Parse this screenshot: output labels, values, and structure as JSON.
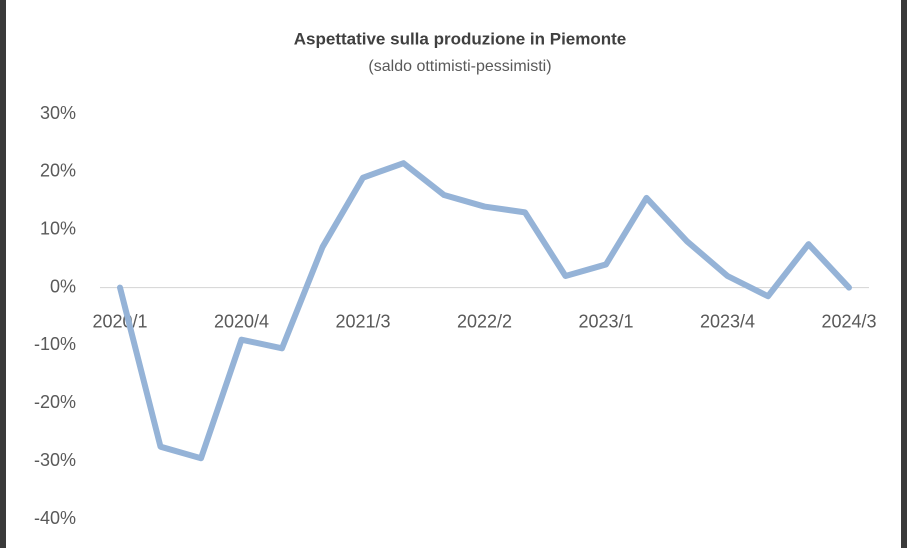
{
  "chart_data": {
    "type": "line",
    "title": "Aspettative sulla produzione in Piemonte",
    "subtitle": "(saldo ottimisti-pessimisti)",
    "categories": [
      "2020/1",
      null,
      null,
      "2020/4",
      null,
      null,
      "2021/3",
      null,
      null,
      "2022/2",
      null,
      null,
      "2023/1",
      null,
      null,
      "2023/4",
      null,
      null,
      "2024/3"
    ],
    "values": [
      0,
      -27.5,
      -29.5,
      -9,
      -10.5,
      7,
      19,
      21.5,
      16,
      14,
      13,
      2,
      4,
      15.5,
      8,
      2,
      -1.5,
      7.5,
      0
    ],
    "color": "#95b3d7",
    "ylim": [
      -40,
      30
    ],
    "yticks": [
      {
        "value": -40,
        "label": "-40%"
      },
      {
        "value": -30,
        "label": "-30%"
      },
      {
        "value": -20,
        "label": "-20%"
      },
      {
        "value": -10,
        "label": "-10%"
      },
      {
        "value": 0,
        "label": "0%"
      },
      {
        "value": 10,
        "label": "10%"
      },
      {
        "value": 20,
        "label": "20%"
      },
      {
        "value": 30,
        "label": "30%"
      }
    ]
  }
}
